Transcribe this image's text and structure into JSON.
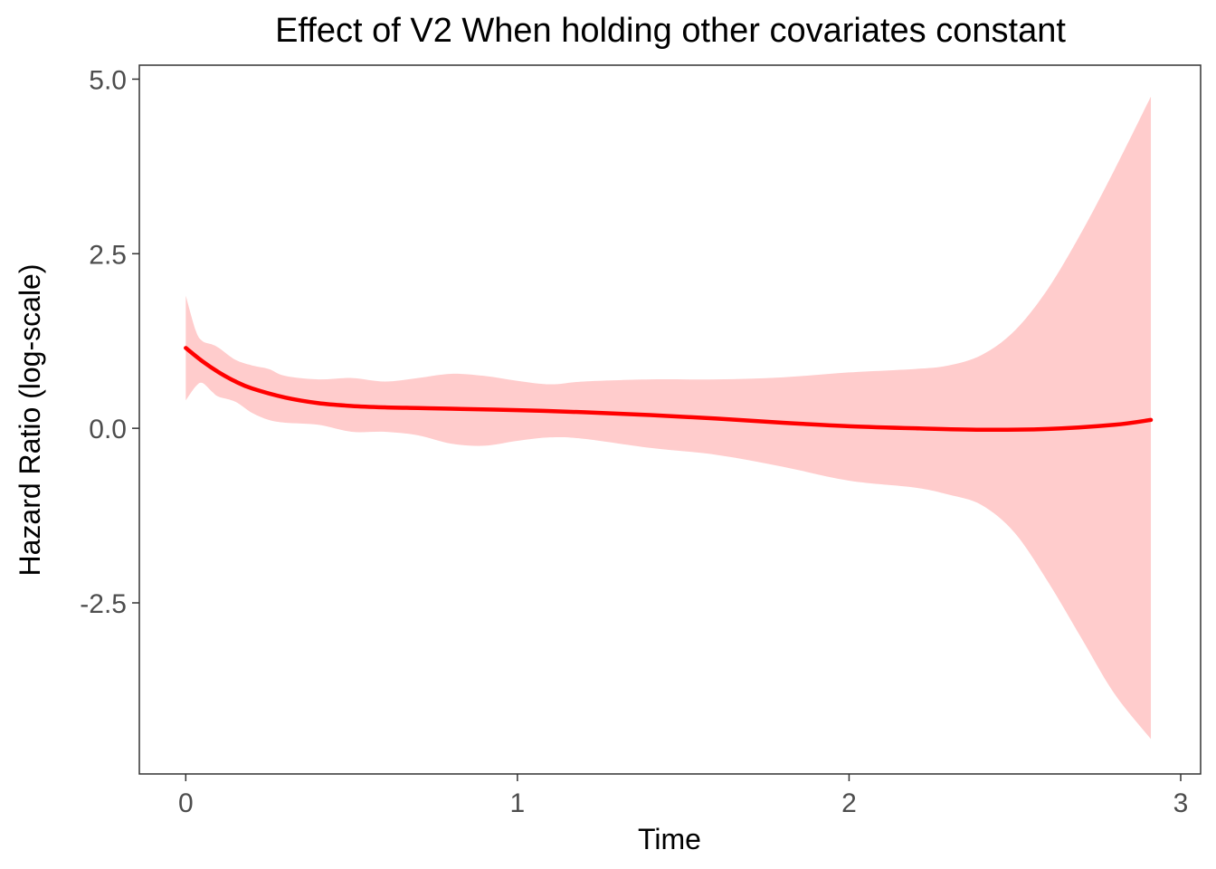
{
  "chart_data": {
    "type": "area",
    "title": "Effect of V2 When holding other covariates constant",
    "xlabel": "Time",
    "ylabel": "Hazard Ratio (log-scale)",
    "xlim": [
      -0.14,
      3.06
    ],
    "ylim": [
      -4.95,
      5.2
    ],
    "x_ticks": [
      0,
      1,
      2,
      3
    ],
    "x_tick_labels": [
      "0",
      "1",
      "2",
      "3"
    ],
    "y_ticks": [
      5.0,
      2.5,
      0.0,
      -2.5
    ],
    "y_tick_labels": [
      "5.0",
      "2.5",
      "0.0",
      "-2.5"
    ],
    "grid": false,
    "legend": "none",
    "colors": {
      "line": "#ff0000",
      "band": "#ffcccc",
      "frame": "#333333"
    },
    "series": [
      {
        "kind": "estimate",
        "x": [
          0.0,
          0.05,
          0.1,
          0.15,
          0.2,
          0.3,
          0.4,
          0.5,
          0.6,
          0.7,
          0.8,
          1.0,
          1.2,
          1.4,
          1.6,
          1.8,
          2.0,
          2.2,
          2.4,
          2.6,
          2.8,
          2.91
        ],
        "y": [
          1.15,
          0.96,
          0.8,
          0.67,
          0.57,
          0.44,
          0.36,
          0.32,
          0.3,
          0.29,
          0.28,
          0.26,
          0.23,
          0.19,
          0.14,
          0.08,
          0.03,
          0.0,
          -0.02,
          -0.01,
          0.05,
          0.12
        ]
      },
      {
        "kind": "confidence_band",
        "x": [
          0.0,
          0.03,
          0.05,
          0.08,
          0.1,
          0.15,
          0.2,
          0.25,
          0.3,
          0.4,
          0.5,
          0.6,
          0.7,
          0.8,
          0.9,
          1.0,
          1.1,
          1.2,
          1.4,
          1.6,
          1.8,
          2.0,
          2.2,
          2.3,
          2.4,
          2.5,
          2.6,
          2.7,
          2.8,
          2.91
        ],
        "upper": [
          1.9,
          1.4,
          1.25,
          1.2,
          1.15,
          0.98,
          0.9,
          0.85,
          0.75,
          0.7,
          0.72,
          0.67,
          0.72,
          0.78,
          0.75,
          0.68,
          0.63,
          0.67,
          0.7,
          0.7,
          0.73,
          0.8,
          0.85,
          0.9,
          1.05,
          1.4,
          2.0,
          2.8,
          3.7,
          4.75
        ],
        "lower": [
          0.4,
          0.6,
          0.65,
          0.52,
          0.45,
          0.38,
          0.22,
          0.12,
          0.08,
          0.05,
          -0.05,
          -0.05,
          -0.1,
          -0.22,
          -0.25,
          -0.18,
          -0.13,
          -0.15,
          -0.28,
          -0.38,
          -0.55,
          -0.75,
          -0.85,
          -0.95,
          -1.1,
          -1.5,
          -2.2,
          -3.0,
          -3.8,
          -4.45
        ]
      }
    ]
  }
}
